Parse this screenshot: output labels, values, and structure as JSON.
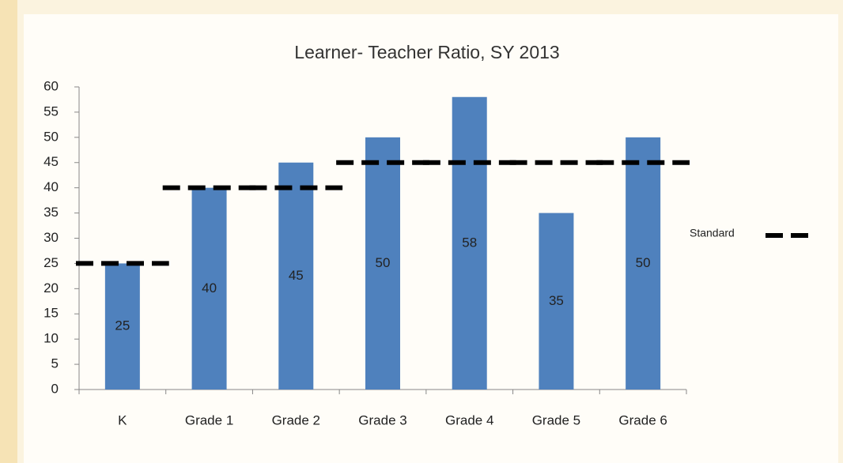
{
  "chart_data": {
    "type": "bar",
    "title": "Learner- Teacher Ratio, SY 2013",
    "categories": [
      "K",
      "Grade 1",
      "Grade 2",
      "Grade 3",
      "Grade 4",
      "Grade 5",
      "Grade 6"
    ],
    "values": [
      25,
      40,
      45,
      50,
      58,
      35,
      50
    ],
    "color": "#4f81bd",
    "standard": {
      "name": "Standard",
      "values": [
        25,
        40,
        40,
        45,
        45,
        45,
        45
      ],
      "color": "#000000"
    },
    "ylim": [
      0,
      60
    ],
    "yticks": [
      0,
      5,
      10,
      15,
      20,
      25,
      30,
      35,
      40,
      45,
      50,
      55,
      60
    ],
    "grid": false
  }
}
